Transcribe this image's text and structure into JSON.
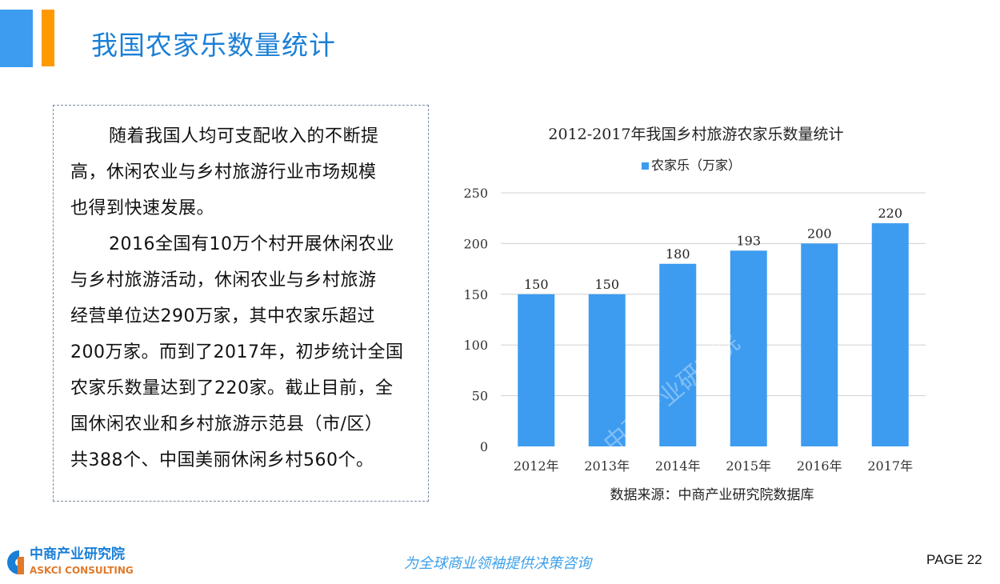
{
  "header": {
    "title": "我国农家乐数量统计"
  },
  "textbox": {
    "lines": [
      "随着我国人均可支配收入的不断提",
      "高，休闲农业与乡村旅游行业市场规模",
      "也得到快速发展。",
      "2016全国有10万个村开展休闲农业",
      "与乡村旅游活动，休闲农业与乡村旅游",
      "经营单位达290万家，其中农家乐超过",
      "200万家。而到了2017年，初步统计全国",
      "农家乐数量达到了220家。截止目前，全",
      "国休闲农业和乡村旅游示范县（市/区）",
      "共388个、中国美丽休闲乡村560个。"
    ]
  },
  "chart_data": {
    "type": "bar",
    "title": "2012-2017年我国乡村旅游农家乐数量统计",
    "categories": [
      "2012年",
      "2013年",
      "2014年",
      "2015年",
      "2016年",
      "2017年"
    ],
    "series": [
      {
        "name": "农家乐（万家）",
        "values": [
          150,
          150,
          180,
          193,
          200,
          220
        ],
        "color": "#3d9cf0"
      }
    ],
    "data_labels": [
      "150",
      "150",
      "180",
      "193",
      "200",
      "220"
    ],
    "yticks": [
      "0",
      "50",
      "100",
      "150",
      "200",
      "250"
    ],
    "ylim": [
      0,
      250
    ],
    "grid": true,
    "legend_position": "top",
    "source": "数据来源：中商产业研究院数据库"
  },
  "watermark": "中商产业研究院 www.askci.com/reports/",
  "footer": {
    "logo_cn": "中商产业研究院",
    "logo_en": "ASKCI CONSULTING",
    "slogan": "为全球商业领袖提供决策咨询",
    "page": "PAGE  22"
  },
  "colors": {
    "accent_blue": "#3d9cf0",
    "accent_orange": "#ff9900",
    "title_blue": "#1a7fd6"
  }
}
